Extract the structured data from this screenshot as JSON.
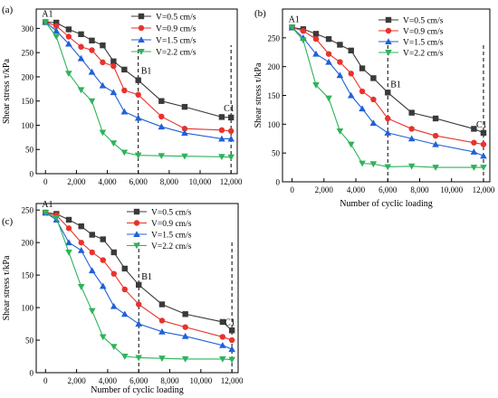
{
  "colors": {
    "s1": "#3a3a3a",
    "s2": "#e8322c",
    "s3": "#2160d8",
    "s4": "#2db35a"
  },
  "chart_data": [
    {
      "type": "line",
      "panel_label": "(a)",
      "ylabel": "Shear stress τ/kPa",
      "xlabel": "",
      "xlim": [
        -600,
        12400
      ],
      "ylim": [
        0,
        340
      ],
      "xticks": [
        0,
        2000,
        4000,
        6000,
        8000,
        10000,
        12000
      ],
      "xtick_labels": [
        "0",
        "2,000",
        "4,000",
        "6,000",
        "8,000",
        "10,000",
        "12,000"
      ],
      "yticks": [
        0,
        50,
        100,
        150,
        200,
        250,
        300
      ],
      "ytick_labels": [
        "0",
        "50",
        "100",
        "150",
        "200",
        "250",
        "300"
      ],
      "legend_position": "top-right",
      "annotations": [
        {
          "text": "A1",
          "x": 0,
          "y": 313
        },
        {
          "text": "B1",
          "x": 6000,
          "y": 195
        },
        {
          "text": "C1",
          "x": 12000,
          "y": 118
        }
      ],
      "vlines": [
        6000,
        12000
      ],
      "series": [
        {
          "name": "V=0.5 cm/s",
          "marker": "square",
          "x": [
            0,
            700,
            1500,
            2300,
            3000,
            3700,
            4400,
            5100,
            6000,
            7500,
            9000,
            11400,
            12000
          ],
          "y": [
            313,
            312,
            298,
            288,
            275,
            265,
            232,
            215,
            193,
            150,
            138,
            117,
            116
          ]
        },
        {
          "name": "V=0.9 cm/s",
          "marker": "circle",
          "x": [
            0,
            700,
            1500,
            2300,
            3000,
            3700,
            4400,
            5100,
            6000,
            7500,
            9000,
            11400,
            12000
          ],
          "y": [
            313,
            305,
            283,
            262,
            255,
            230,
            222,
            172,
            163,
            118,
            93,
            90,
            88
          ]
        },
        {
          "name": "V=1.5 cm/s",
          "marker": "triangle-up",
          "x": [
            0,
            700,
            1500,
            2300,
            3000,
            3700,
            4400,
            5100,
            6000,
            7500,
            9000,
            11400,
            12000
          ],
          "y": [
            313,
            295,
            268,
            238,
            210,
            182,
            168,
            128,
            115,
            97,
            84,
            72,
            72
          ]
        },
        {
          "name": "V=2.2 cm/s",
          "marker": "triangle-down",
          "x": [
            0,
            700,
            1500,
            2300,
            3000,
            3700,
            4400,
            5100,
            6000,
            7500,
            9000,
            11400,
            12000
          ],
          "y": [
            313,
            283,
            207,
            173,
            150,
            85,
            63,
            44,
            38,
            37,
            36,
            35,
            34
          ]
        }
      ]
    },
    {
      "type": "line",
      "panel_label": "(b)",
      "ylabel": "Shear stress τ/kPa",
      "xlabel": "Number of cyclic loading",
      "xlim": [
        -600,
        12400
      ],
      "ylim": [
        0,
        300
      ],
      "xticks": [
        0,
        2000,
        4000,
        6000,
        8000,
        10000,
        12000
      ],
      "xtick_labels": [
        "0",
        "2,000",
        "4,000",
        "6,000",
        "8,000",
        "10,000",
        "12,000"
      ],
      "yticks": [
        0,
        50,
        100,
        150,
        200,
        250
      ],
      "ytick_labels": [
        "0",
        "50",
        "100",
        "150",
        "200",
        "250"
      ],
      "legend_position": "top-right",
      "annotations": [
        {
          "text": "A1",
          "x": 0,
          "y": 268
        },
        {
          "text": "B1",
          "x": 6000,
          "y": 155
        },
        {
          "text": "C1",
          "x": 12000,
          "y": 85
        }
      ],
      "vlines": [
        6000,
        12000
      ],
      "series": [
        {
          "name": "V=0.5 cm/s",
          "marker": "square",
          "x": [
            0,
            700,
            1500,
            2300,
            3000,
            3700,
            4400,
            5100,
            6000,
            7500,
            9000,
            11400,
            12000
          ],
          "y": [
            268,
            265,
            257,
            248,
            238,
            228,
            197,
            180,
            155,
            120,
            110,
            92,
            85
          ]
        },
        {
          "name": "V=0.9 cm/s",
          "marker": "circle",
          "x": [
            0,
            700,
            1500,
            2300,
            3000,
            3700,
            4400,
            5100,
            6000,
            7500,
            9000,
            11400,
            12000
          ],
          "y": [
            268,
            262,
            248,
            222,
            208,
            188,
            157,
            143,
            110,
            92,
            80,
            68,
            65
          ]
        },
        {
          "name": "V=1.5 cm/s",
          "marker": "triangle-up",
          "x": [
            0,
            700,
            1500,
            2300,
            3000,
            3700,
            4400,
            5100,
            6000,
            7500,
            9000,
            11400,
            12000
          ],
          "y": [
            268,
            250,
            222,
            208,
            185,
            150,
            127,
            102,
            85,
            75,
            65,
            52,
            45
          ]
        },
        {
          "name": "V=2.2 cm/s",
          "marker": "triangle-down",
          "x": [
            0,
            700,
            1500,
            2300,
            3000,
            3700,
            4400,
            5100,
            6000,
            7500,
            9000,
            11400,
            12000
          ],
          "y": [
            268,
            246,
            168,
            145,
            88,
            65,
            32,
            31,
            26,
            27,
            25,
            25,
            25
          ]
        }
      ]
    },
    {
      "type": "line",
      "panel_label": "(c)",
      "ylabel": "Shear stress τ/kPa",
      "xlabel": "Number of cyclic loading",
      "xlim": [
        -600,
        12400
      ],
      "ylim": [
        0,
        260
      ],
      "xticks": [
        0,
        2000,
        4000,
        6000,
        8000,
        10000,
        12000
      ],
      "xtick_labels": [
        "0",
        "2,000",
        "4,000",
        "6,000",
        "8,000",
        "10,000",
        "12,000"
      ],
      "yticks": [
        0,
        50,
        100,
        150,
        200,
        250
      ],
      "ytick_labels": [
        "0",
        "50",
        "100",
        "150",
        "200",
        "250"
      ],
      "legend_position": "top-right",
      "annotations": [
        {
          "text": "A1",
          "x": 0,
          "y": 246
        },
        {
          "text": "B1",
          "x": 6000,
          "y": 135
        },
        {
          "text": "C1",
          "x": 12000,
          "y": 65
        }
      ],
      "vlines": [
        6000,
        12000
      ],
      "series": [
        {
          "name": "V=0.5 cm/s",
          "marker": "square",
          "x": [
            0,
            700,
            1500,
            2300,
            3000,
            3700,
            4400,
            5100,
            6000,
            7500,
            9000,
            11400,
            12000
          ],
          "y": [
            246,
            244,
            235,
            225,
            212,
            205,
            185,
            160,
            135,
            105,
            90,
            78,
            65
          ]
        },
        {
          "name": "V=0.9 cm/s",
          "marker": "circle",
          "x": [
            0,
            700,
            1500,
            2300,
            3000,
            3700,
            4400,
            5100,
            6000,
            7500,
            9000,
            11400,
            12000
          ],
          "y": [
            246,
            242,
            222,
            200,
            185,
            173,
            152,
            128,
            105,
            80,
            70,
            55,
            50
          ]
        },
        {
          "name": "V=1.5 cm/s",
          "marker": "triangle-up",
          "x": [
            0,
            700,
            1500,
            2300,
            3000,
            3700,
            4400,
            5100,
            6000,
            7500,
            9000,
            11400,
            12000
          ],
          "y": [
            246,
            235,
            200,
            188,
            157,
            133,
            102,
            90,
            75,
            63,
            56,
            42,
            36
          ]
        },
        {
          "name": "V=2.2 cm/s",
          "marker": "triangle-down",
          "x": [
            0,
            700,
            1500,
            2300,
            3000,
            3700,
            4400,
            5100,
            6000,
            7500,
            9000,
            11400,
            12000
          ],
          "y": [
            246,
            238,
            185,
            132,
            95,
            55,
            40,
            25,
            23,
            22,
            21,
            21,
            20
          ]
        }
      ]
    }
  ]
}
